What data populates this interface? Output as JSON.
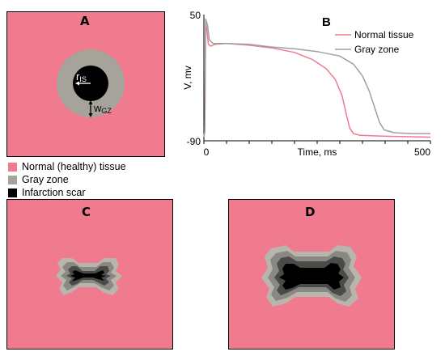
{
  "panelA": {
    "label": "A",
    "r_symbol": "r",
    "r_subscript": "IS",
    "w_symbol": "w",
    "w_subscript": "GZ"
  },
  "legend": {
    "items": [
      {
        "label": "Normal (healthy) tissue",
        "color": "#f07a8e"
      },
      {
        "label": "Gray zone",
        "color": "#a6a39b"
      },
      {
        "label": "Infarction scar",
        "color": "#000000"
      }
    ]
  },
  "panelC": {
    "label": "C"
  },
  "panelD": {
    "label": "D"
  },
  "colors": {
    "tissue": "#f07a8e",
    "gray_zone": "#a6a39b",
    "scar": "#000000",
    "normal_line": "#f07a8e",
    "gray_line": "#a0a0a0"
  },
  "chart_data": {
    "type": "line",
    "panel_label": "B",
    "xlabel": "Time, ms",
    "ylabel": "V, mv",
    "xlim": [
      0,
      500
    ],
    "ylim": [
      -90,
      50
    ],
    "xticks": [
      "0",
      "500"
    ],
    "yticks": [
      "50",
      "-90"
    ],
    "legend_position": "top-right",
    "series": [
      {
        "name": "Normal tissue",
        "color": "#f07a8e",
        "points": [
          [
            0,
            -86
          ],
          [
            2,
            -80
          ],
          [
            4,
            40
          ],
          [
            6,
            35
          ],
          [
            10,
            17
          ],
          [
            15,
            15
          ],
          [
            25,
            17
          ],
          [
            50,
            18
          ],
          [
            100,
            16
          ],
          [
            150,
            13
          ],
          [
            200,
            8
          ],
          [
            240,
            0
          ],
          [
            270,
            -10
          ],
          [
            290,
            -22
          ],
          [
            305,
            -40
          ],
          [
            315,
            -62
          ],
          [
            322,
            -76
          ],
          [
            330,
            -82
          ],
          [
            345,
            -84
          ],
          [
            400,
            -85
          ],
          [
            500,
            -86
          ]
        ]
      },
      {
        "name": "Gray zone",
        "color": "#a0a0a0",
        "points": [
          [
            0,
            -86
          ],
          [
            2,
            -80
          ],
          [
            4,
            45
          ],
          [
            8,
            38
          ],
          [
            12,
            22
          ],
          [
            20,
            18
          ],
          [
            50,
            18
          ],
          [
            100,
            17
          ],
          [
            150,
            14
          ],
          [
            200,
            12
          ],
          [
            250,
            9
          ],
          [
            300,
            4
          ],
          [
            330,
            -5
          ],
          [
            350,
            -18
          ],
          [
            365,
            -35
          ],
          [
            378,
            -55
          ],
          [
            388,
            -70
          ],
          [
            398,
            -78
          ],
          [
            420,
            -81
          ],
          [
            460,
            -82
          ],
          [
            500,
            -82
          ]
        ]
      }
    ]
  }
}
